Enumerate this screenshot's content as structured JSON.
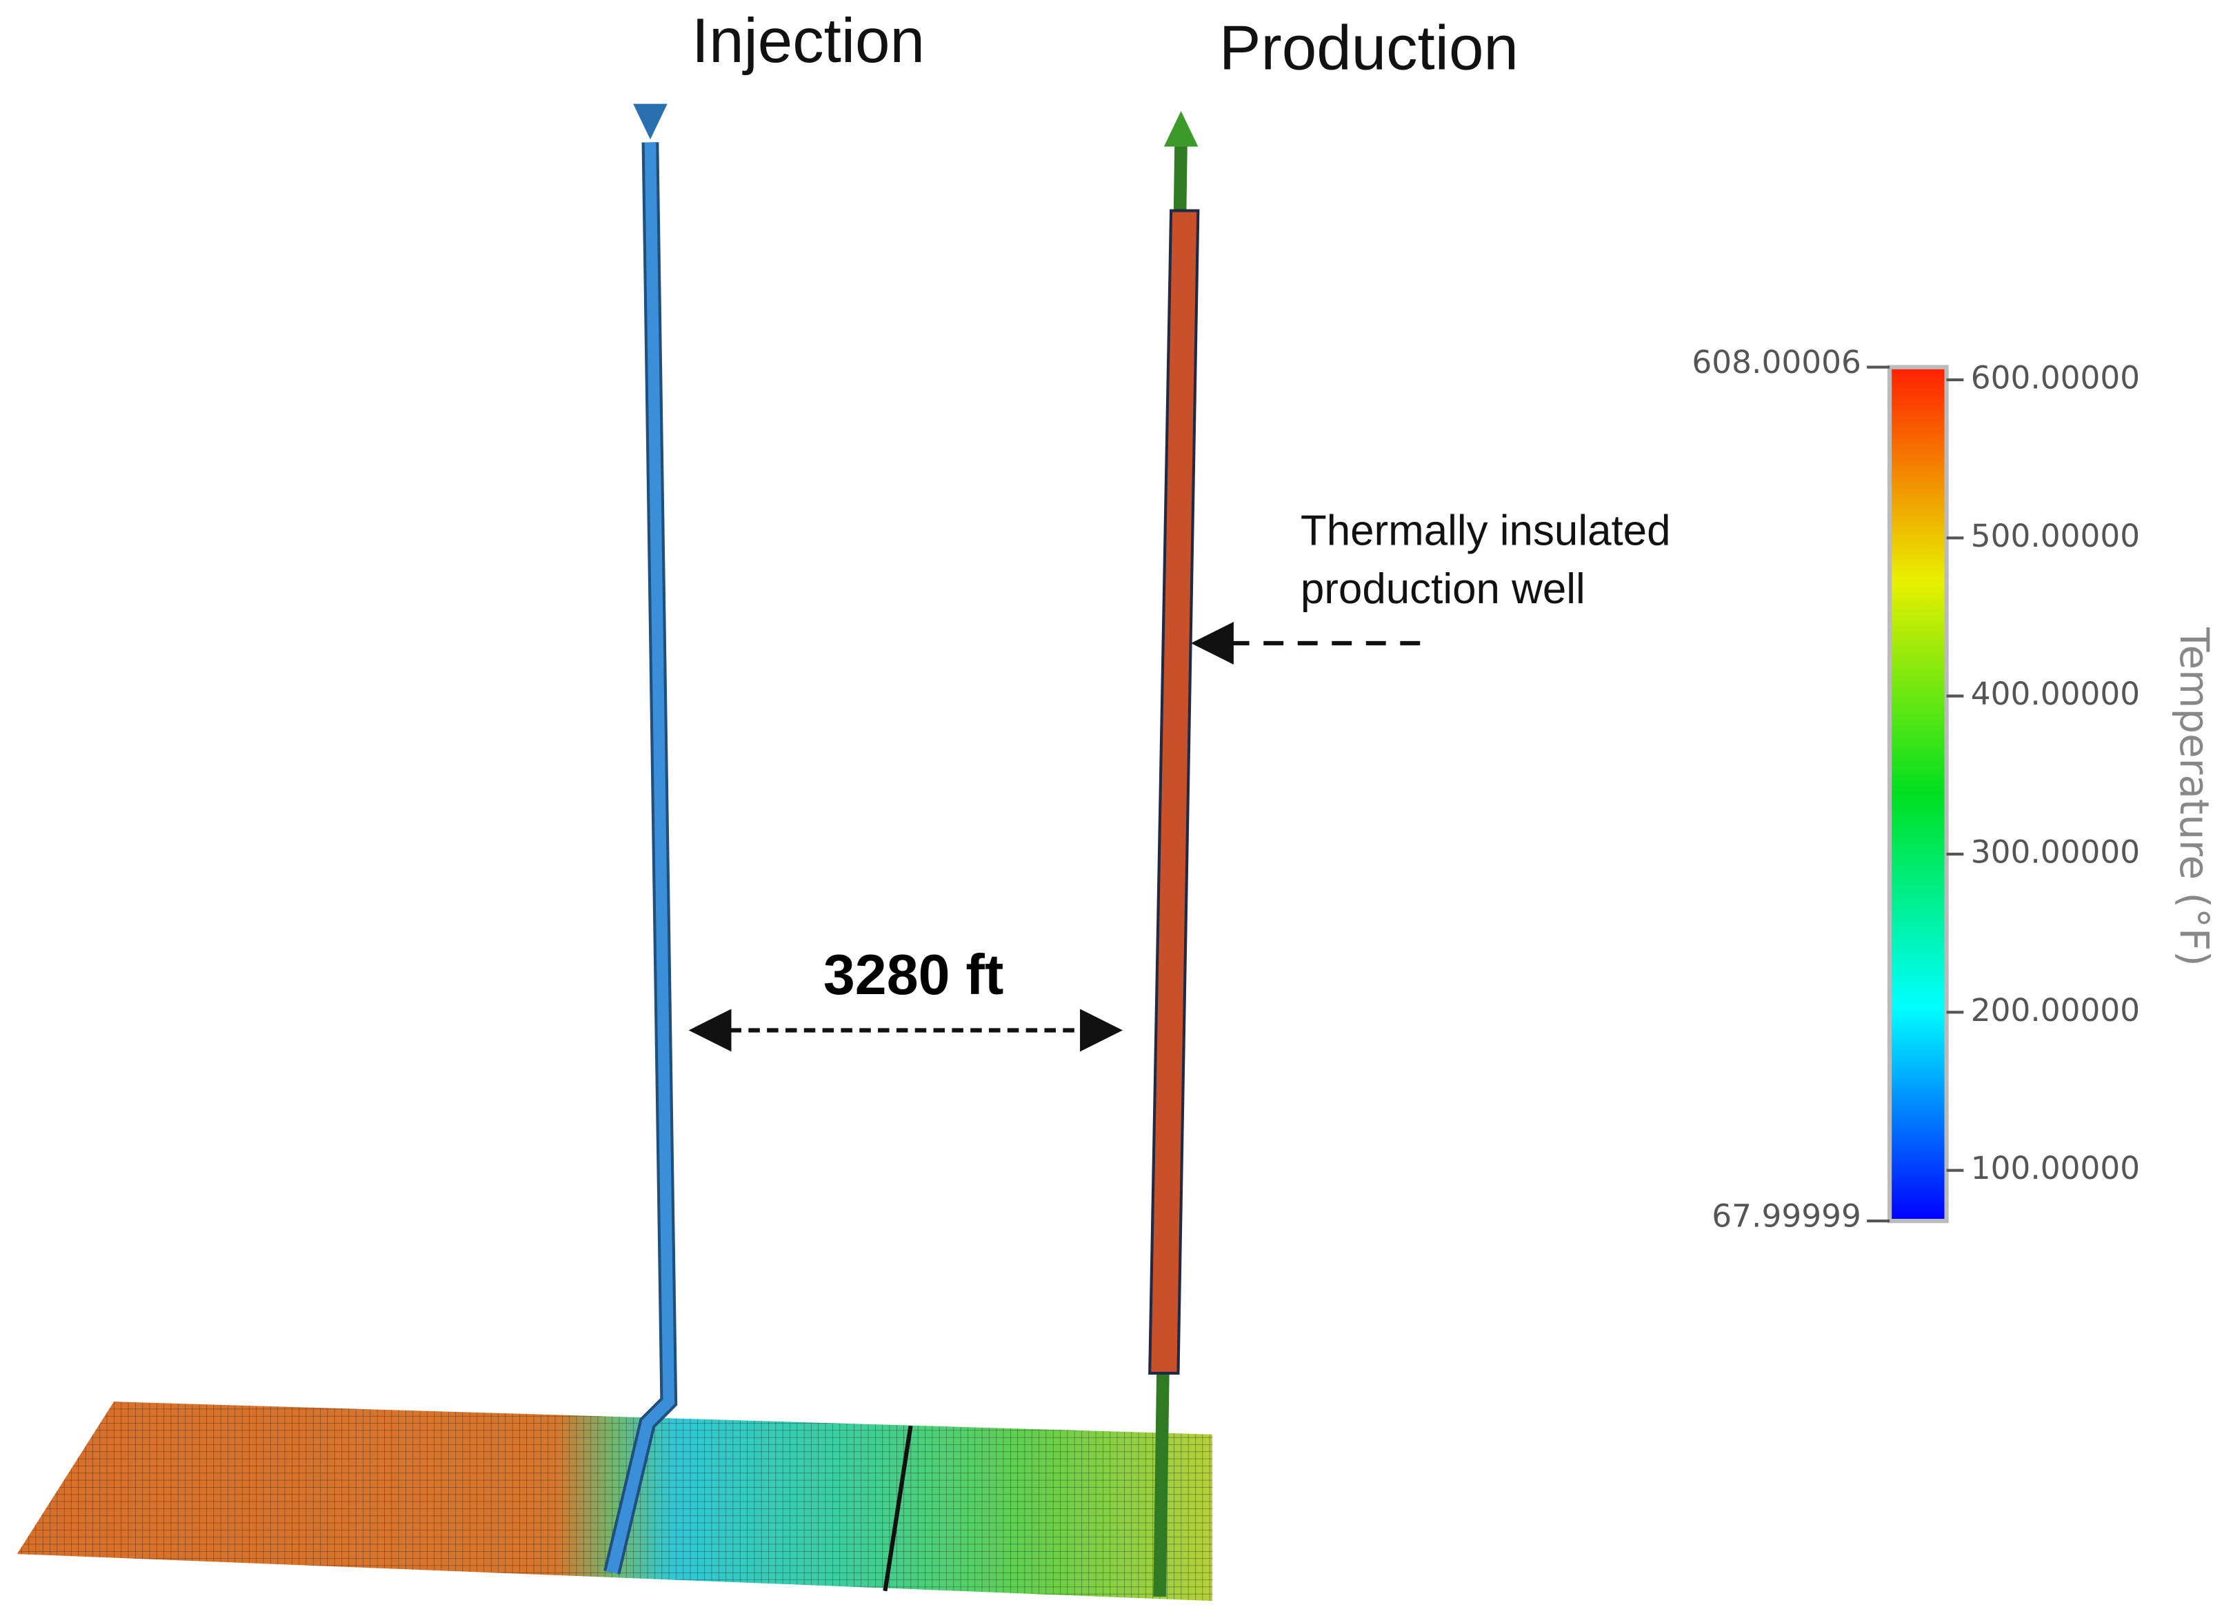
{
  "labels": {
    "injection": "Injection",
    "production": "Production",
    "annotation": [
      "Thermally insulated",
      "production well"
    ],
    "distance": "3280 ft"
  },
  "colorbar": {
    "title": "Temperature (°F)",
    "range": [
      {
        "value": 67.99999,
        "label": "67.99999"
      },
      {
        "value": 608.00006,
        "label": "608.00006"
      }
    ],
    "ticks": [
      {
        "value": 100,
        "label": "100.00000"
      },
      {
        "value": 200,
        "label": "200.00000"
      },
      {
        "value": 300,
        "label": "300.00000"
      },
      {
        "value": 400,
        "label": "400.00000"
      },
      {
        "value": 500,
        "label": "500.00000"
      },
      {
        "value": 600,
        "label": "600.00000"
      }
    ]
  }
}
